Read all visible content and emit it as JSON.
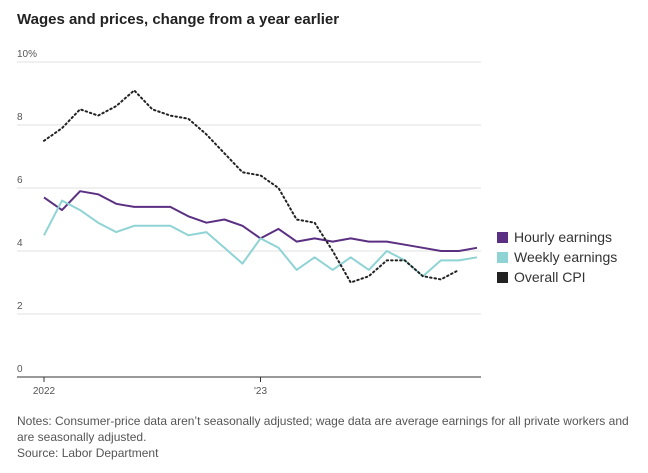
{
  "chart_data": {
    "type": "line",
    "title": "Wages and prices, change from a year earlier",
    "xlabel": "",
    "ylabel": "",
    "ylim": [
      0,
      10
    ],
    "y_ticks": [
      {
        "value": 0,
        "label": "0"
      },
      {
        "value": 2,
        "label": "2"
      },
      {
        "value": 4,
        "label": "4"
      },
      {
        "value": 6,
        "label": "6"
      },
      {
        "value": 8,
        "label": "8"
      },
      {
        "value": 10,
        "label": "10%"
      }
    ],
    "x_ticks": [
      {
        "index": 0,
        "label": "2022"
      },
      {
        "index": 12,
        "label": "'23"
      }
    ],
    "x": [
      "2022-01",
      "2022-02",
      "2022-03",
      "2022-04",
      "2022-05",
      "2022-06",
      "2022-07",
      "2022-08",
      "2022-09",
      "2022-10",
      "2022-11",
      "2022-12",
      "2023-01",
      "2023-02",
      "2023-03",
      "2023-04",
      "2023-05",
      "2023-06",
      "2023-07",
      "2023-08",
      "2023-09",
      "2023-10",
      "2023-11",
      "2023-12",
      "2024-01"
    ],
    "series": [
      {
        "name": "Hourly earnings",
        "color": "#5b2f82",
        "style": "solid",
        "values": [
          5.7,
          5.3,
          5.9,
          5.8,
          5.5,
          5.4,
          5.4,
          5.4,
          5.1,
          4.9,
          5.0,
          4.8,
          4.4,
          4.7,
          4.3,
          4.4,
          4.3,
          4.4,
          4.3,
          4.3,
          4.2,
          4.1,
          4.0,
          4.0,
          4.1
        ]
      },
      {
        "name": "Weekly earnings",
        "color": "#8fd3d5",
        "style": "solid",
        "values": [
          4.5,
          5.6,
          5.3,
          4.9,
          4.6,
          4.8,
          4.8,
          4.8,
          4.5,
          4.6,
          4.1,
          3.6,
          4.4,
          4.1,
          3.4,
          3.8,
          3.4,
          3.8,
          3.4,
          4.0,
          3.7,
          3.2,
          3.7,
          3.7,
          3.8
        ]
      },
      {
        "name": "Overall CPI",
        "color": "#222222",
        "style": "dotted",
        "values": [
          7.5,
          7.9,
          8.5,
          8.3,
          8.6,
          9.1,
          8.5,
          8.3,
          8.2,
          7.7,
          7.1,
          6.5,
          6.4,
          6.0,
          5.0,
          4.9,
          4.0,
          3.0,
          3.2,
          3.7,
          3.7,
          3.2,
          3.1,
          3.4,
          null
        ]
      }
    ],
    "legend_position": "right",
    "notes": "Notes: Consumer-price data aren’t seasonally adjusted; wage data are average earnings for all private workers and are seasonally adjusted.",
    "source": "Source: Labor Department"
  }
}
